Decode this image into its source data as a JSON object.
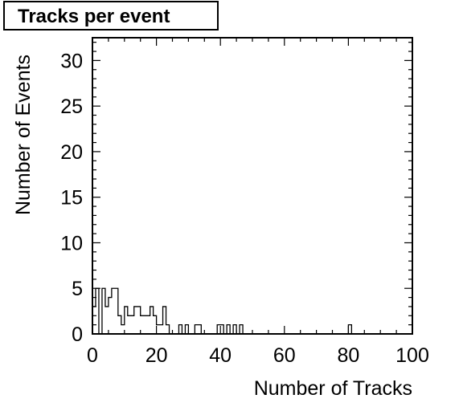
{
  "chart_data": {
    "type": "bar",
    "title": "Tracks per event",
    "xlabel": "Number of Tracks",
    "ylabel": "Number of Events",
    "xlim": [
      0,
      100
    ],
    "ylim": [
      0,
      32.5
    ],
    "x_ticks": [
      "0",
      "20",
      "40",
      "60",
      "80",
      "100"
    ],
    "y_ticks": [
      "0",
      "5",
      "10",
      "15",
      "20",
      "25",
      "30"
    ],
    "bin_width": 1,
    "bins": [
      {
        "x": 0,
        "y": 3
      },
      {
        "x": 1,
        "y": 5
      },
      {
        "x": 2,
        "y": 0
      },
      {
        "x": 3,
        "y": 5
      },
      {
        "x": 4,
        "y": 3
      },
      {
        "x": 5,
        "y": 4
      },
      {
        "x": 6,
        "y": 5
      },
      {
        "x": 7,
        "y": 5
      },
      {
        "x": 8,
        "y": 2
      },
      {
        "x": 9,
        "y": 1
      },
      {
        "x": 10,
        "y": 3
      },
      {
        "x": 11,
        "y": 2
      },
      {
        "x": 12,
        "y": 2
      },
      {
        "x": 13,
        "y": 3
      },
      {
        "x": 14,
        "y": 3
      },
      {
        "x": 15,
        "y": 2
      },
      {
        "x": 16,
        "y": 2
      },
      {
        "x": 17,
        "y": 2
      },
      {
        "x": 18,
        "y": 3
      },
      {
        "x": 19,
        "y": 2
      },
      {
        "x": 20,
        "y": 1
      },
      {
        "x": 21,
        "y": 1
      },
      {
        "x": 22,
        "y": 3
      },
      {
        "x": 23,
        "y": 1
      },
      {
        "x": 27,
        "y": 1
      },
      {
        "x": 29,
        "y": 1
      },
      {
        "x": 32,
        "y": 1
      },
      {
        "x": 33,
        "y": 1
      },
      {
        "x": 39,
        "y": 1
      },
      {
        "x": 40,
        "y": 1
      },
      {
        "x": 42,
        "y": 1
      },
      {
        "x": 44,
        "y": 1
      },
      {
        "x": 46,
        "y": 1
      },
      {
        "x": 80,
        "y": 1
      }
    ],
    "grid": false,
    "legend": "none"
  }
}
